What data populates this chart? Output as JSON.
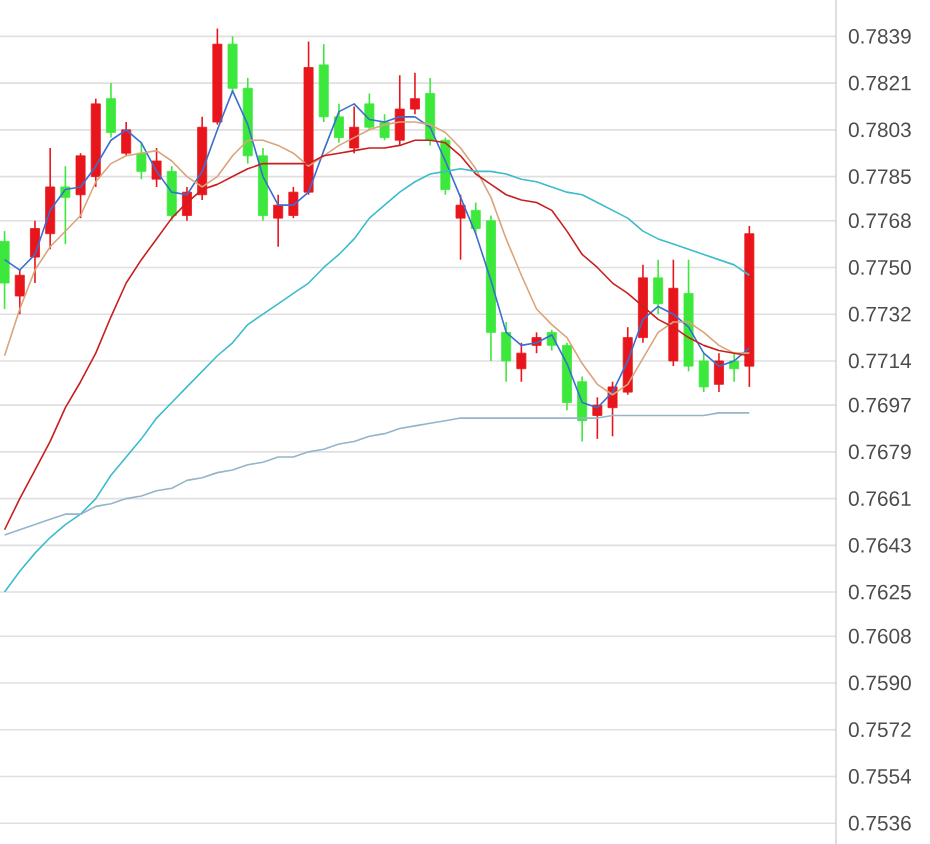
{
  "chart_data": {
    "type": "candlestick",
    "categories": [
      null,
      null,
      null,
      null,
      null,
      null,
      null,
      null,
      null,
      null,
      null,
      null,
      null,
      null,
      null,
      null,
      null,
      null,
      null,
      null,
      null,
      null,
      null,
      null,
      null,
      null,
      null,
      null,
      null,
      null,
      null,
      null,
      null,
      null,
      null,
      null,
      null,
      null,
      null,
      null,
      null,
      null,
      null,
      null,
      null,
      null,
      null,
      null,
      null,
      null
    ],
    "ohlc": [
      [
        0.776,
        0.7764,
        0.7734,
        0.7744
      ],
      [
        0.7739,
        0.7749,
        0.7732,
        0.7747
      ],
      [
        0.7754,
        0.7768,
        0.7744,
        0.7765
      ],
      [
        0.7763,
        0.7796,
        0.7757,
        0.7781
      ],
      [
        0.7781,
        0.7789,
        0.7759,
        0.7777
      ],
      [
        0.7778,
        0.7794,
        0.7769,
        0.7793
      ],
      [
        0.7785,
        0.7815,
        0.7781,
        0.7813
      ],
      [
        0.7815,
        0.7821,
        0.78,
        0.7802
      ],
      [
        0.7794,
        0.7806,
        0.7793,
        0.7803
      ],
      [
        0.7794,
        0.7798,
        0.7784,
        0.7787
      ],
      [
        0.7784,
        0.7796,
        0.7781,
        0.7791
      ],
      [
        0.7787,
        0.7789,
        0.7768,
        0.777
      ],
      [
        0.777,
        0.7781,
        0.7768,
        0.7779
      ],
      [
        0.7778,
        0.7808,
        0.7776,
        0.7804
      ],
      [
        0.7806,
        0.7842,
        0.7805,
        0.7836
      ],
      [
        0.7836,
        0.7839,
        0.7817,
        0.7819
      ],
      [
        0.7819,
        0.7823,
        0.779,
        0.7793
      ],
      [
        0.7793,
        0.7796,
        0.7768,
        0.777
      ],
      [
        0.7769,
        0.7778,
        0.7758,
        0.7774
      ],
      [
        0.777,
        0.7781,
        0.7769,
        0.7779
      ],
      [
        0.7779,
        0.7837,
        0.7778,
        0.7827
      ],
      [
        0.7828,
        0.7836,
        0.7806,
        0.7808
      ],
      [
        0.7808,
        0.7813,
        0.7798,
        0.78
      ],
      [
        0.7796,
        0.7812,
        0.7794,
        0.7804
      ],
      [
        0.7813,
        0.7817,
        0.7803,
        0.7804
      ],
      [
        0.7806,
        0.7809,
        0.7799,
        0.78
      ],
      [
        0.7799,
        0.7824,
        0.7797,
        0.7811
      ],
      [
        0.7811,
        0.7825,
        0.7809,
        0.7815
      ],
      [
        0.7817,
        0.7823,
        0.7797,
        0.7799
      ],
      [
        0.7799,
        0.78,
        0.7778,
        0.778
      ],
      [
        0.7769,
        0.7778,
        0.7753,
        0.7774
      ],
      [
        0.7772,
        0.7775,
        0.7763,
        0.7765
      ],
      [
        0.7768,
        0.777,
        0.7714,
        0.7725
      ],
      [
        0.7725,
        0.7729,
        0.7706,
        0.7714
      ],
      [
        0.7711,
        0.7721,
        0.7706,
        0.7717
      ],
      [
        0.772,
        0.7725,
        0.7717,
        0.7723
      ],
      [
        0.7725,
        0.7726,
        0.7718,
        0.772
      ],
      [
        0.772,
        0.7721,
        0.7695,
        0.7698
      ],
      [
        0.7706,
        0.7708,
        0.7683,
        0.7691
      ],
      [
        0.7693,
        0.77,
        0.7684,
        0.7697
      ],
      [
        0.7696,
        0.7706,
        0.7685,
        0.7704
      ],
      [
        0.7702,
        0.7727,
        0.7701,
        0.7723
      ],
      [
        0.7723,
        0.7751,
        0.7721,
        0.7746
      ],
      [
        0.7746,
        0.7753,
        0.7732,
        0.7736
      ],
      [
        0.7714,
        0.7753,
        0.7712,
        0.7742
      ],
      [
        0.774,
        0.7753,
        0.771,
        0.7712
      ],
      [
        0.7714,
        0.7717,
        0.7702,
        0.7704
      ],
      [
        0.7705,
        0.7717,
        0.7702,
        0.7714
      ],
      [
        0.7714,
        0.7717,
        0.7706,
        0.7711
      ],
      [
        0.7712,
        0.7766,
        0.7704,
        0.7763
      ]
    ],
    "colors": [
      "#3de83d",
      "#e8161c",
      "#e8161c",
      "#e8161c",
      "#3de83d",
      "#e8161c",
      "#e8161c",
      "#3de83d",
      "#e8161c",
      "#3de83d",
      "#e8161c",
      "#3de83d",
      "#e8161c",
      "#e8161c",
      "#e8161c",
      "#3de83d",
      "#3de83d",
      "#3de83d",
      "#e8161c",
      "#e8161c",
      "#e8161c",
      "#3de83d",
      "#3de83d",
      "#e8161c",
      "#3de83d",
      "#3de83d",
      "#e8161c",
      "#e8161c",
      "#3de83d",
      "#3de83d",
      "#e8161c",
      "#3de83d",
      "#3de83d",
      "#3de83d",
      "#e8161c",
      "#e8161c",
      "#3de83d",
      "#3de83d",
      "#3de83d",
      "#e8161c",
      "#e8161c",
      "#e8161c",
      "#e8161c",
      "#3de83d",
      "#e8161c",
      "#3de83d",
      "#3de83d",
      "#e8161c",
      "#3de83d",
      "#e8161c"
    ],
    "series": [
      {
        "type": "line",
        "color": "#3a6fd0",
        "values": [
          0.7753,
          0.7749,
          0.7755,
          0.7772,
          0.778,
          0.7781,
          0.7789,
          0.7799,
          0.7803,
          0.7798,
          0.7787,
          0.7779,
          0.7778,
          0.7787,
          0.7803,
          0.7818,
          0.7805,
          0.7785,
          0.7774,
          0.7774,
          0.7779,
          0.7795,
          0.781,
          0.7813,
          0.7807,
          0.7806,
          0.7808,
          0.7808,
          0.7804,
          0.7791,
          0.7777,
          0.7763,
          0.7745,
          0.7725,
          0.772,
          0.7721,
          0.7724,
          0.7713,
          0.7698,
          0.7696,
          0.7702,
          0.7714,
          0.773,
          0.7735,
          0.7732,
          0.7727,
          0.7717,
          0.7712,
          0.7714,
          0.7719
        ]
      },
      {
        "type": "line",
        "color": "#dba47a",
        "values": [
          0.7716,
          0.7734,
          0.7749,
          0.7758,
          0.7764,
          0.777,
          0.7783,
          0.779,
          0.7793,
          0.7794,
          0.7795,
          0.7791,
          0.7785,
          0.7781,
          0.7785,
          0.7793,
          0.7799,
          0.7799,
          0.7797,
          0.7794,
          0.7789,
          0.7793,
          0.7797,
          0.78,
          0.7803,
          0.7805,
          0.7806,
          0.7806,
          0.7805,
          0.7802,
          0.7796,
          0.7788,
          0.7777,
          0.7761,
          0.7747,
          0.7734,
          0.7728,
          0.7723,
          0.7713,
          0.7705,
          0.7701,
          0.7705,
          0.7715,
          0.7725,
          0.7729,
          0.7729,
          0.7725,
          0.772,
          0.7717,
          0.7717
        ]
      },
      {
        "type": "line",
        "color": "#c8201e",
        "values": [
          0.7649,
          0.7661,
          0.7672,
          0.7683,
          0.7696,
          0.7706,
          0.7717,
          0.7731,
          0.7744,
          0.7753,
          0.7761,
          0.7769,
          0.7775,
          0.778,
          0.7782,
          0.7785,
          0.7788,
          0.779,
          0.779,
          0.779,
          0.779,
          0.7793,
          0.7794,
          0.7795,
          0.7796,
          0.7796,
          0.7797,
          0.7799,
          0.7799,
          0.7798,
          0.7793,
          0.7786,
          0.7782,
          0.7778,
          0.7776,
          0.7775,
          0.7772,
          0.7764,
          0.7755,
          0.775,
          0.7744,
          0.774,
          0.7735,
          0.773,
          0.7727,
          0.7723,
          0.772,
          0.7718,
          0.7717,
          0.7716
        ]
      },
      {
        "type": "line",
        "color": "#3cbccc",
        "values": [
          0.7625,
          0.7633,
          0.764,
          0.7646,
          0.7651,
          0.7655,
          0.7661,
          0.767,
          0.7677,
          0.7684,
          0.7692,
          0.7698,
          0.7704,
          0.771,
          0.7716,
          0.7721,
          0.7728,
          0.7732,
          0.7736,
          0.774,
          0.7744,
          0.775,
          0.7755,
          0.7761,
          0.7769,
          0.7774,
          0.7779,
          0.7783,
          0.7786,
          0.7787,
          0.7788,
          0.7787,
          0.7787,
          0.7786,
          0.7784,
          0.7783,
          0.7781,
          0.7779,
          0.7778,
          0.7775,
          0.7772,
          0.7769,
          0.7764,
          0.7761,
          0.7759,
          0.7757,
          0.7755,
          0.7753,
          0.7751,
          0.7747
        ]
      },
      {
        "type": "line",
        "color": "#95b4c8",
        "values": [
          0.7647,
          0.7649,
          0.7651,
          0.7653,
          0.7655,
          0.7655,
          0.7658,
          0.7659,
          0.7661,
          0.7662,
          0.7664,
          0.7665,
          0.7668,
          0.7669,
          0.7671,
          0.7672,
          0.7674,
          0.7675,
          0.7677,
          0.7677,
          0.7679,
          0.768,
          0.7682,
          0.7683,
          0.7685,
          0.7686,
          0.7688,
          0.7689,
          0.769,
          0.7691,
          0.7692,
          0.7692,
          0.7692,
          0.7692,
          0.7692,
          0.7692,
          0.7692,
          0.7692,
          0.7692,
          0.7692,
          0.7693,
          0.7693,
          0.7693,
          0.7693,
          0.7693,
          0.7693,
          0.7693,
          0.7694,
          0.7694,
          0.7694
        ]
      }
    ],
    "ylim": [
      0.7528,
      0.7853
    ],
    "yticks": [
      0.7536,
      0.7554,
      0.7572,
      {
        "value": 0.759,
        "label": "0.7590"
      },
      0.7608,
      0.7625,
      0.7643,
      0.7661,
      0.7679,
      0.7697,
      0.7714,
      0.7732,
      {
        "value": 0.775,
        "label": "0.7750"
      },
      0.7768,
      0.7785,
      0.7803,
      0.7821,
      0.7839
    ],
    "grid": "y",
    "tick_labels": "y"
  }
}
